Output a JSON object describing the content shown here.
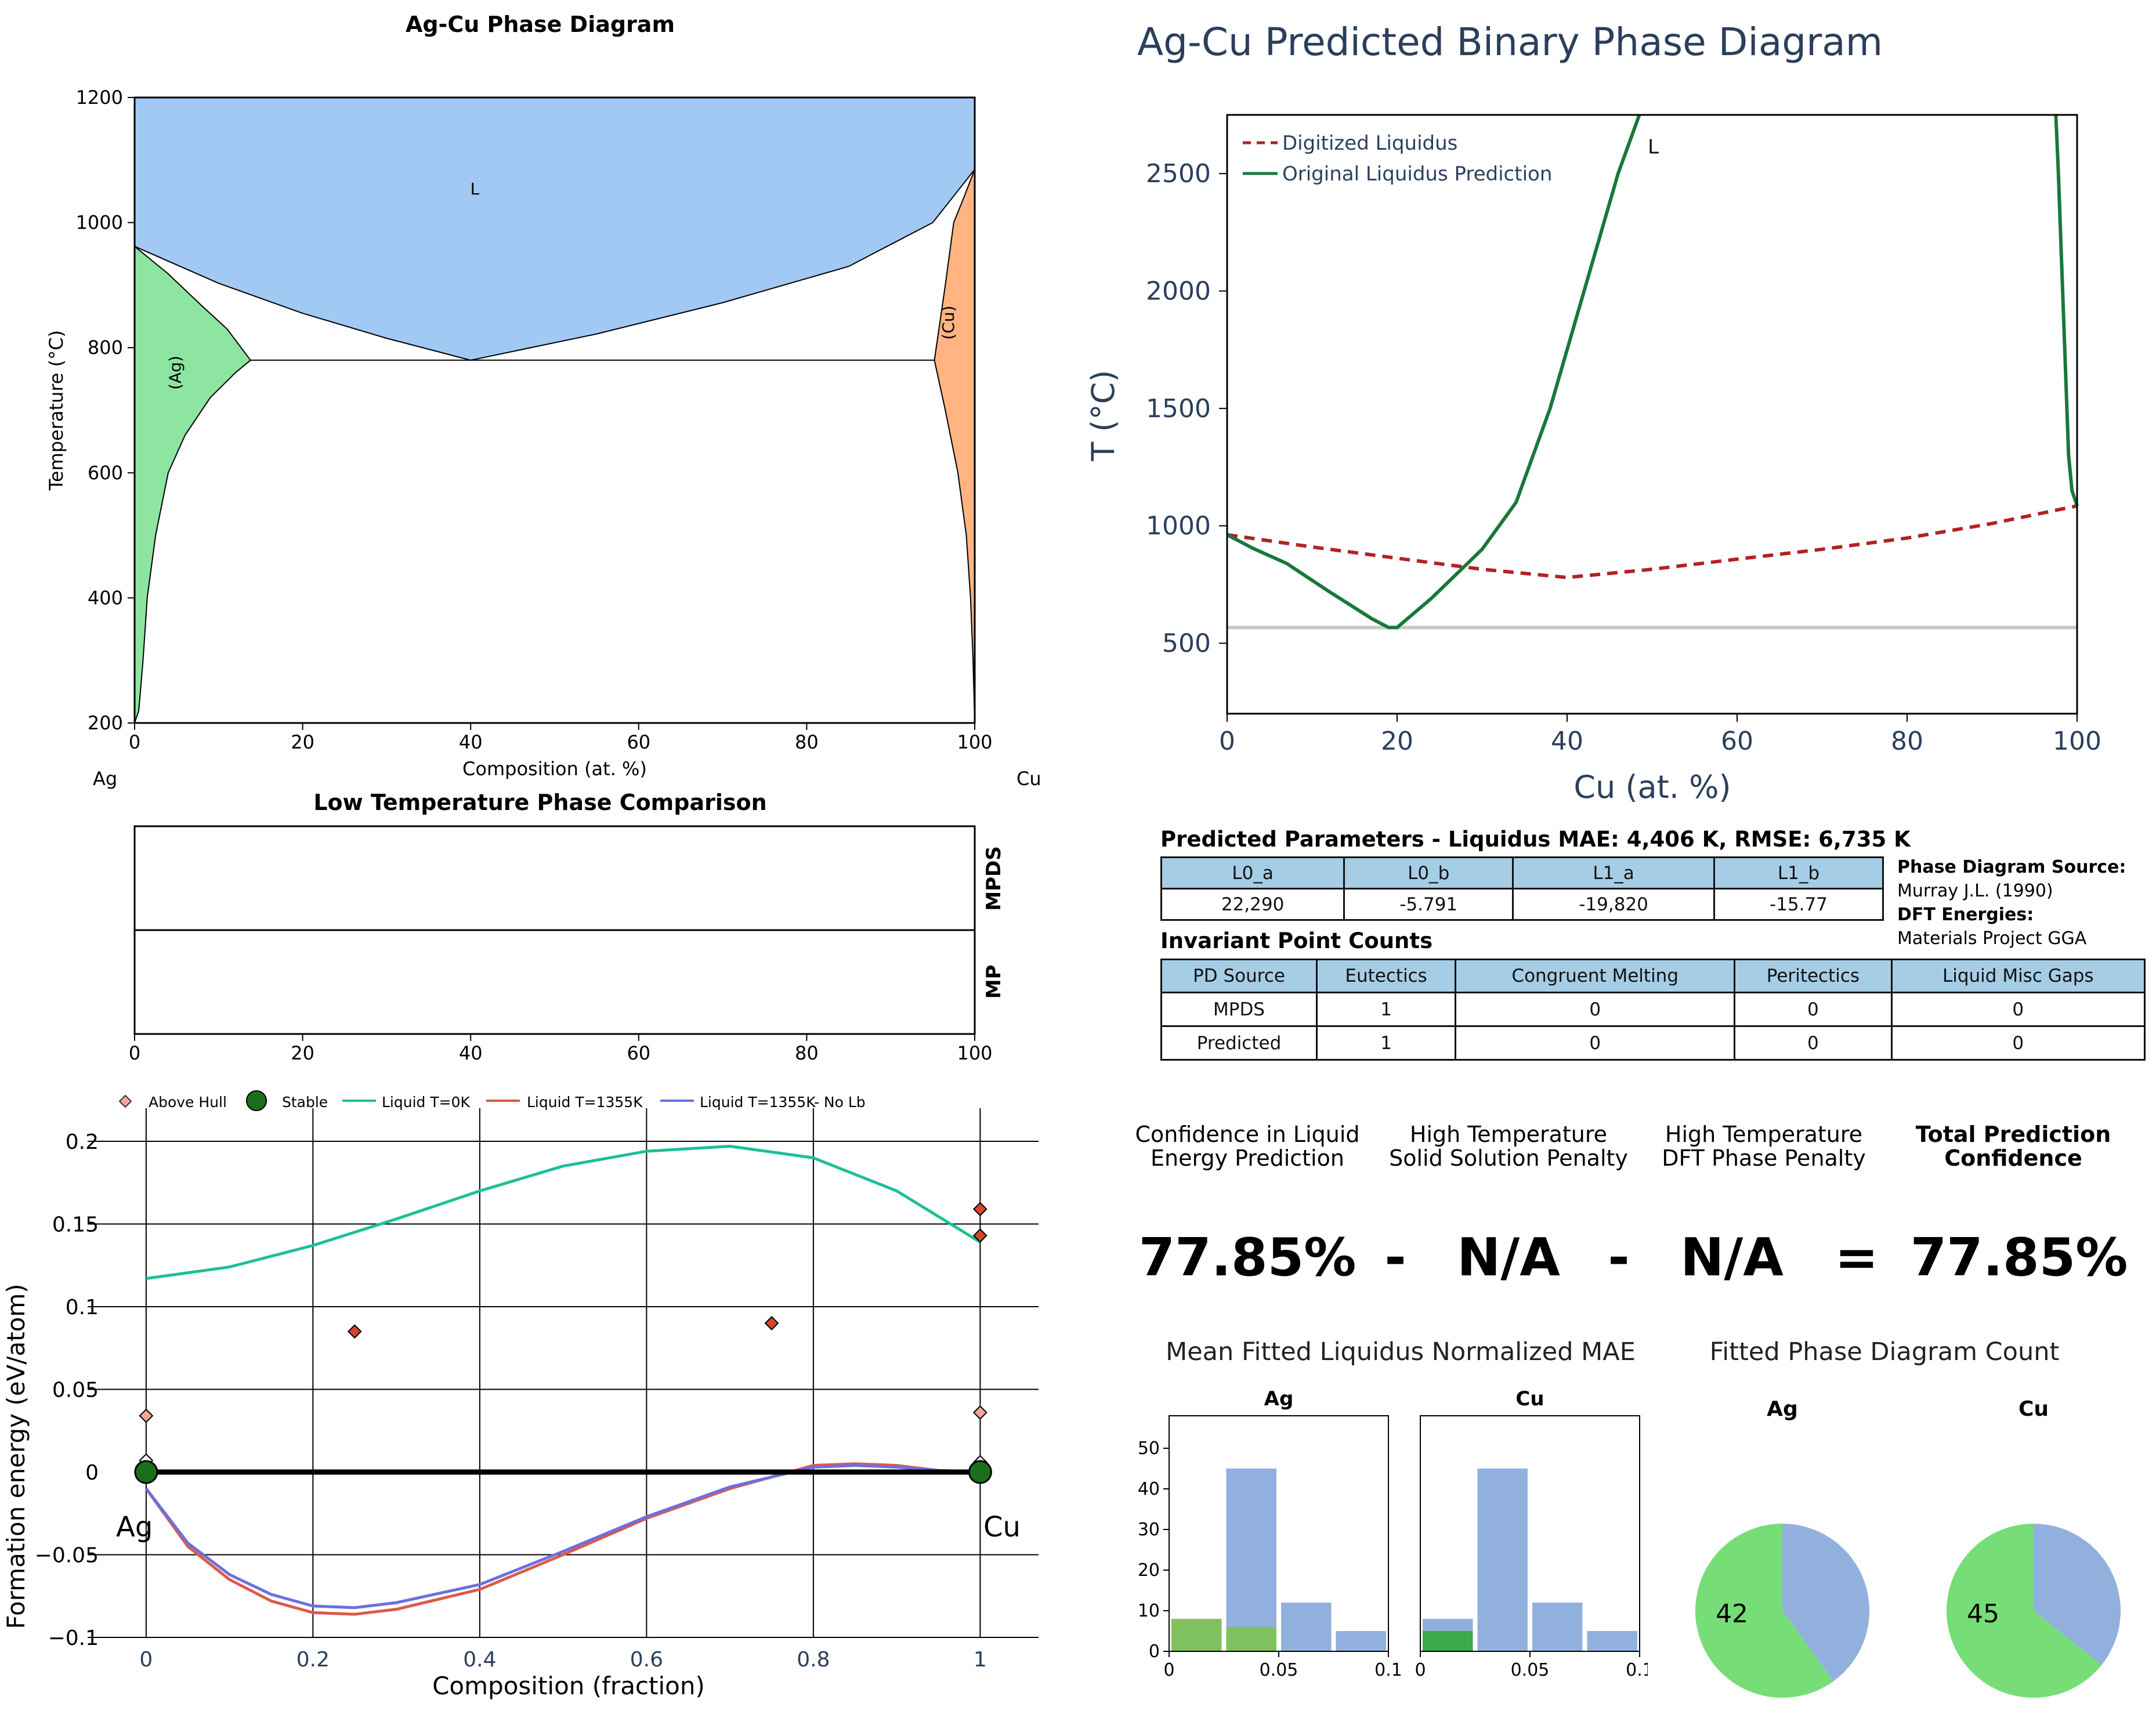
{
  "chart_data": [
    {
      "id": "ag-cu-phase-diagram",
      "type": "area",
      "title": "Ag-Cu Phase Diagram",
      "xlabel": "Composition (at. %)",
      "ylabel": "Temperature (°C)",
      "xlim": [
        0,
        100
      ],
      "ylim": [
        200,
        1200
      ],
      "xticks": [
        "0",
        "20",
        "40",
        "60",
        "80",
        "100"
      ],
      "yticks": [
        "200",
        "400",
        "600",
        "800",
        "1000",
        "1200"
      ],
      "left_element": "Ag",
      "right_element": "Cu",
      "regions": [
        {
          "label": "L",
          "color": "#a1c9f4",
          "label_at": [
            40.5,
            1045
          ],
          "boundary": [
            [
              0,
              1200
            ],
            [
              100,
              1200
            ],
            [
              100,
              1085
            ],
            [
              95,
              1000
            ],
            [
              85,
              930
            ],
            [
              70,
              872
            ],
            [
              55,
              822
            ],
            [
              40,
              780
            ],
            [
              30,
              815
            ],
            [
              20,
              855
            ],
            [
              10,
              903
            ],
            [
              0,
              962
            ]
          ]
        },
        {
          "label": "(Ag)",
          "color": "#8de5a1",
          "label_at": [
            5.5,
            760
          ],
          "boundary": [
            [
              0,
              962
            ],
            [
              4,
              918
            ],
            [
              8,
              867
            ],
            [
              11,
              830
            ],
            [
              13.8,
              780
            ],
            [
              12,
              760
            ],
            [
              9,
              720
            ],
            [
              6,
              660
            ],
            [
              4,
              600
            ],
            [
              2.5,
              500
            ],
            [
              1.5,
              400
            ],
            [
              1,
              300
            ],
            [
              0.5,
              220
            ],
            [
              0,
              200
            ]
          ]
        },
        {
          "label": "(Cu)",
          "color": "#ffb482",
          "label_at": [
            97.5,
            840
          ],
          "boundary": [
            [
              100,
              1085
            ],
            [
              98.7,
              1040
            ],
            [
              97.5,
              1000
            ],
            [
              96.5,
              900
            ],
            [
              95.2,
              780
            ],
            [
              96.5,
              700
            ],
            [
              98,
              600
            ],
            [
              99,
              500
            ],
            [
              99.5,
              400
            ],
            [
              99.8,
              300
            ],
            [
              100,
              200
            ]
          ]
        }
      ],
      "lines": [
        {
          "name": "eutectic",
          "points": [
            [
              13.8,
              780
            ],
            [
              95.2,
              780
            ]
          ]
        }
      ]
    },
    {
      "id": "predicted-binary-phase-diagram",
      "type": "line",
      "title": "Ag-Cu Predicted Binary Phase Diagram",
      "xlabel": "Cu (at. %)",
      "ylabel": "T (°C)",
      "xlim": [
        0,
        100
      ],
      "ylim": [
        200,
        2750
      ],
      "xticks": [
        "0",
        "20",
        "40",
        "60",
        "80",
        "100"
      ],
      "yticks": [
        "500",
        "1000",
        "1500",
        "2000",
        "2500"
      ],
      "annotation": "L",
      "annotation_at": [
        49.5,
        2660
      ],
      "legend_position": "top-left",
      "series": [
        {
          "name": "Digitized Liquidus",
          "color": "#b22222",
          "style": "dashed",
          "x": [
            0,
            10,
            20,
            30,
            40,
            50,
            60,
            70,
            80,
            90,
            100
          ],
          "y": [
            962,
            910,
            862,
            815,
            780,
            815,
            858,
            900,
            948,
            1010,
            1085
          ]
        },
        {
          "name": "Original Liquidus Prediction",
          "color": "#19783a",
          "style": "solid",
          "segments": [
            {
              "x": [
                0,
                3,
                7,
                12,
                17,
                19,
                20,
                24,
                30,
                34,
                38,
                42,
                46,
                48.5
              ],
              "y": [
                962,
                905,
                840,
                720,
                605,
                567,
                567,
                690,
                900,
                1100,
                1500,
                2000,
                2500,
                2750
              ]
            },
            {
              "x": [
                97.5,
                97.8,
                98.2,
                98.6,
                99,
                99.4,
                100
              ],
              "y": [
                2750,
                2500,
                2100,
                1700,
                1300,
                1150,
                1085
              ]
            }
          ]
        },
        {
          "name": "",
          "color": "#c8c8c8",
          "style": "solid",
          "x": [
            0,
            100
          ],
          "y": [
            567,
            567
          ]
        }
      ]
    },
    {
      "id": "low-temperature-phase-comparison",
      "type": "bar",
      "title": "Low Temperature Phase Comparison",
      "xlim": [
        0,
        100
      ],
      "xticks": [
        "0",
        "20",
        "40",
        "60",
        "80",
        "100"
      ],
      "rows": [
        "MPDS",
        "MP"
      ]
    },
    {
      "id": "formation-energy",
      "type": "scatter",
      "xlabel": "Composition (fraction)",
      "ylabel": "Formation energy (eV/atom)",
      "xlim": [
        -0.05,
        1.07
      ],
      "ylim": [
        -0.1,
        0.22
      ],
      "xticks": [
        "0",
        "0.2",
        "0.4",
        "0.6",
        "0.8",
        "1"
      ],
      "yticks": [
        "−0.1",
        "−0.05",
        "0",
        "0.05",
        "0.1",
        "0.15",
        "0.2"
      ],
      "left_element": "Ag",
      "right_element": "Cu",
      "legend_position": "top",
      "legend": [
        "Above Hull",
        "Stable",
        "Liquid T=0K",
        "Liquid T=1355K",
        "Liquid T=1355K- No Lb"
      ],
      "above_hull": {
        "color": "#d2472c",
        "points": [
          [
            0,
            0.034
          ],
          [
            0.25,
            0.085
          ],
          [
            0.75,
            0.09
          ],
          [
            1,
            0.159
          ],
          [
            1,
            0.143
          ],
          [
            1,
            0.036
          ],
          [
            0,
            0.007
          ],
          [
            1,
            0.006
          ]
        ]
      },
      "stable": {
        "color": "#1b6e1b",
        "points": [
          [
            0,
            0
          ],
          [
            1,
            0
          ]
        ]
      },
      "hull_line": [
        [
          0,
          0
        ],
        [
          1,
          0
        ]
      ],
      "liquid_0K": {
        "color": "#1dbf97",
        "x": [
          0,
          0.1,
          0.2,
          0.3,
          0.4,
          0.5,
          0.6,
          0.7,
          0.8,
          0.9,
          1
        ],
        "y": [
          0.117,
          0.124,
          0.137,
          0.153,
          0.17,
          0.185,
          0.194,
          0.197,
          0.19,
          0.17,
          0.139
        ]
      },
      "liquid_1355K": {
        "color": "#dd5a48",
        "x": [
          0,
          0.05,
          0.1,
          0.15,
          0.2,
          0.25,
          0.3,
          0.4,
          0.5,
          0.6,
          0.7,
          0.8,
          0.85,
          0.9,
          0.95,
          1
        ],
        "y": [
          -0.01,
          -0.045,
          -0.065,
          -0.078,
          -0.085,
          -0.086,
          -0.083,
          -0.071,
          -0.05,
          -0.028,
          -0.01,
          0.004,
          0.005,
          0.004,
          0.001,
          0
        ]
      },
      "liquid_1355K_no_lb": {
        "color": "#6b70e0",
        "x": [
          0,
          0.05,
          0.1,
          0.15,
          0.2,
          0.25,
          0.3,
          0.4,
          0.5,
          0.6,
          0.7,
          0.8,
          0.85,
          0.9,
          0.95,
          1
        ],
        "y": [
          -0.01,
          -0.043,
          -0.062,
          -0.074,
          -0.081,
          -0.082,
          -0.079,
          -0.068,
          -0.048,
          -0.027,
          -0.009,
          0.003,
          0.004,
          0.003,
          0.001,
          0
        ]
      }
    },
    {
      "id": "mae-histograms",
      "type": "bar",
      "title": "Mean Fitted Liquidus Normalized MAE",
      "xlim": [
        0,
        0.1
      ],
      "ylim": [
        0,
        58
      ],
      "xticks": [
        "0",
        "0.05",
        "0.1"
      ],
      "yticks": [
        "0",
        "10",
        "20",
        "30",
        "40",
        "50"
      ],
      "panels": [
        {
          "title": "Ag",
          "bins": [
            0,
            0.025,
            0.05,
            0.075,
            0.1
          ],
          "blue": [
            8,
            45,
            12,
            5
          ],
          "green": [
            8,
            6,
            0,
            0
          ],
          "green_color": "#7ec15e"
        },
        {
          "title": "Cu",
          "bins": [
            0,
            0.025,
            0.05,
            0.075,
            0.1
          ],
          "blue": [
            8,
            45,
            12,
            5
          ],
          "green": [
            5,
            0,
            0,
            0
          ],
          "green_color": "#3aaa4a"
        }
      ]
    },
    {
      "id": "phase-diagram-count",
      "type": "pie",
      "title": "Fitted Phase Diagram Count",
      "panels": [
        {
          "title": "Ag",
          "label": "42",
          "slices": [
            {
              "value": 42,
              "color": "#77dd77"
            },
            {
              "value": 28,
              "color": "#92b0dd"
            }
          ]
        },
        {
          "title": "Cu",
          "label": "45",
          "slices": [
            {
              "value": 45,
              "color": "#77dd77"
            },
            {
              "value": 25,
              "color": "#92b0dd"
            }
          ]
        }
      ]
    }
  ],
  "params": {
    "title": "Predicted Parameters - Liquidus MAE: 4,406 K, RMSE: 6,735 K",
    "headers": [
      "L0_a",
      "L0_b",
      "L1_a",
      "L1_b"
    ],
    "values": [
      "22,290",
      "-5.791",
      "-19,820",
      "-15.77"
    ]
  },
  "source": {
    "pd_label": "Phase Diagram Source:",
    "pd_value": "Murray J.L. (1990)",
    "dft_label": "DFT Energies:",
    "dft_value": "Materials Project GGA"
  },
  "invariant": {
    "title": "Invariant Point Counts",
    "headers": [
      "PD Source",
      "Eutectics",
      "Congruent Melting",
      "Peritectics",
      "Liquid Misc Gaps"
    ],
    "rows": [
      [
        "MPDS",
        "1",
        "0",
        "0",
        "0"
      ],
      [
        "Predicted",
        "1",
        "0",
        "0",
        "0"
      ]
    ]
  },
  "confidence": {
    "h1": [
      "Confidence in Liquid",
      "Energy Prediction"
    ],
    "h2": [
      "High Temperature",
      "Solid Solution Penalty"
    ],
    "h3": [
      "High Temperature",
      "DFT Phase Penalty"
    ],
    "h4": [
      "Total Prediction",
      "Confidence"
    ],
    "v1": "77.85%",
    "op1": "-",
    "v2": "N/A",
    "op2": "-",
    "v3": "N/A",
    "op3": "=",
    "v4": "77.85%"
  },
  "colors": {
    "liquid": "#a1c9f4",
    "ag_solid": "#8de5a1",
    "cu_solid": "#ffb482",
    "header_bg": "#a6cde6",
    "axis_text_blue": "#2b3f5c"
  }
}
